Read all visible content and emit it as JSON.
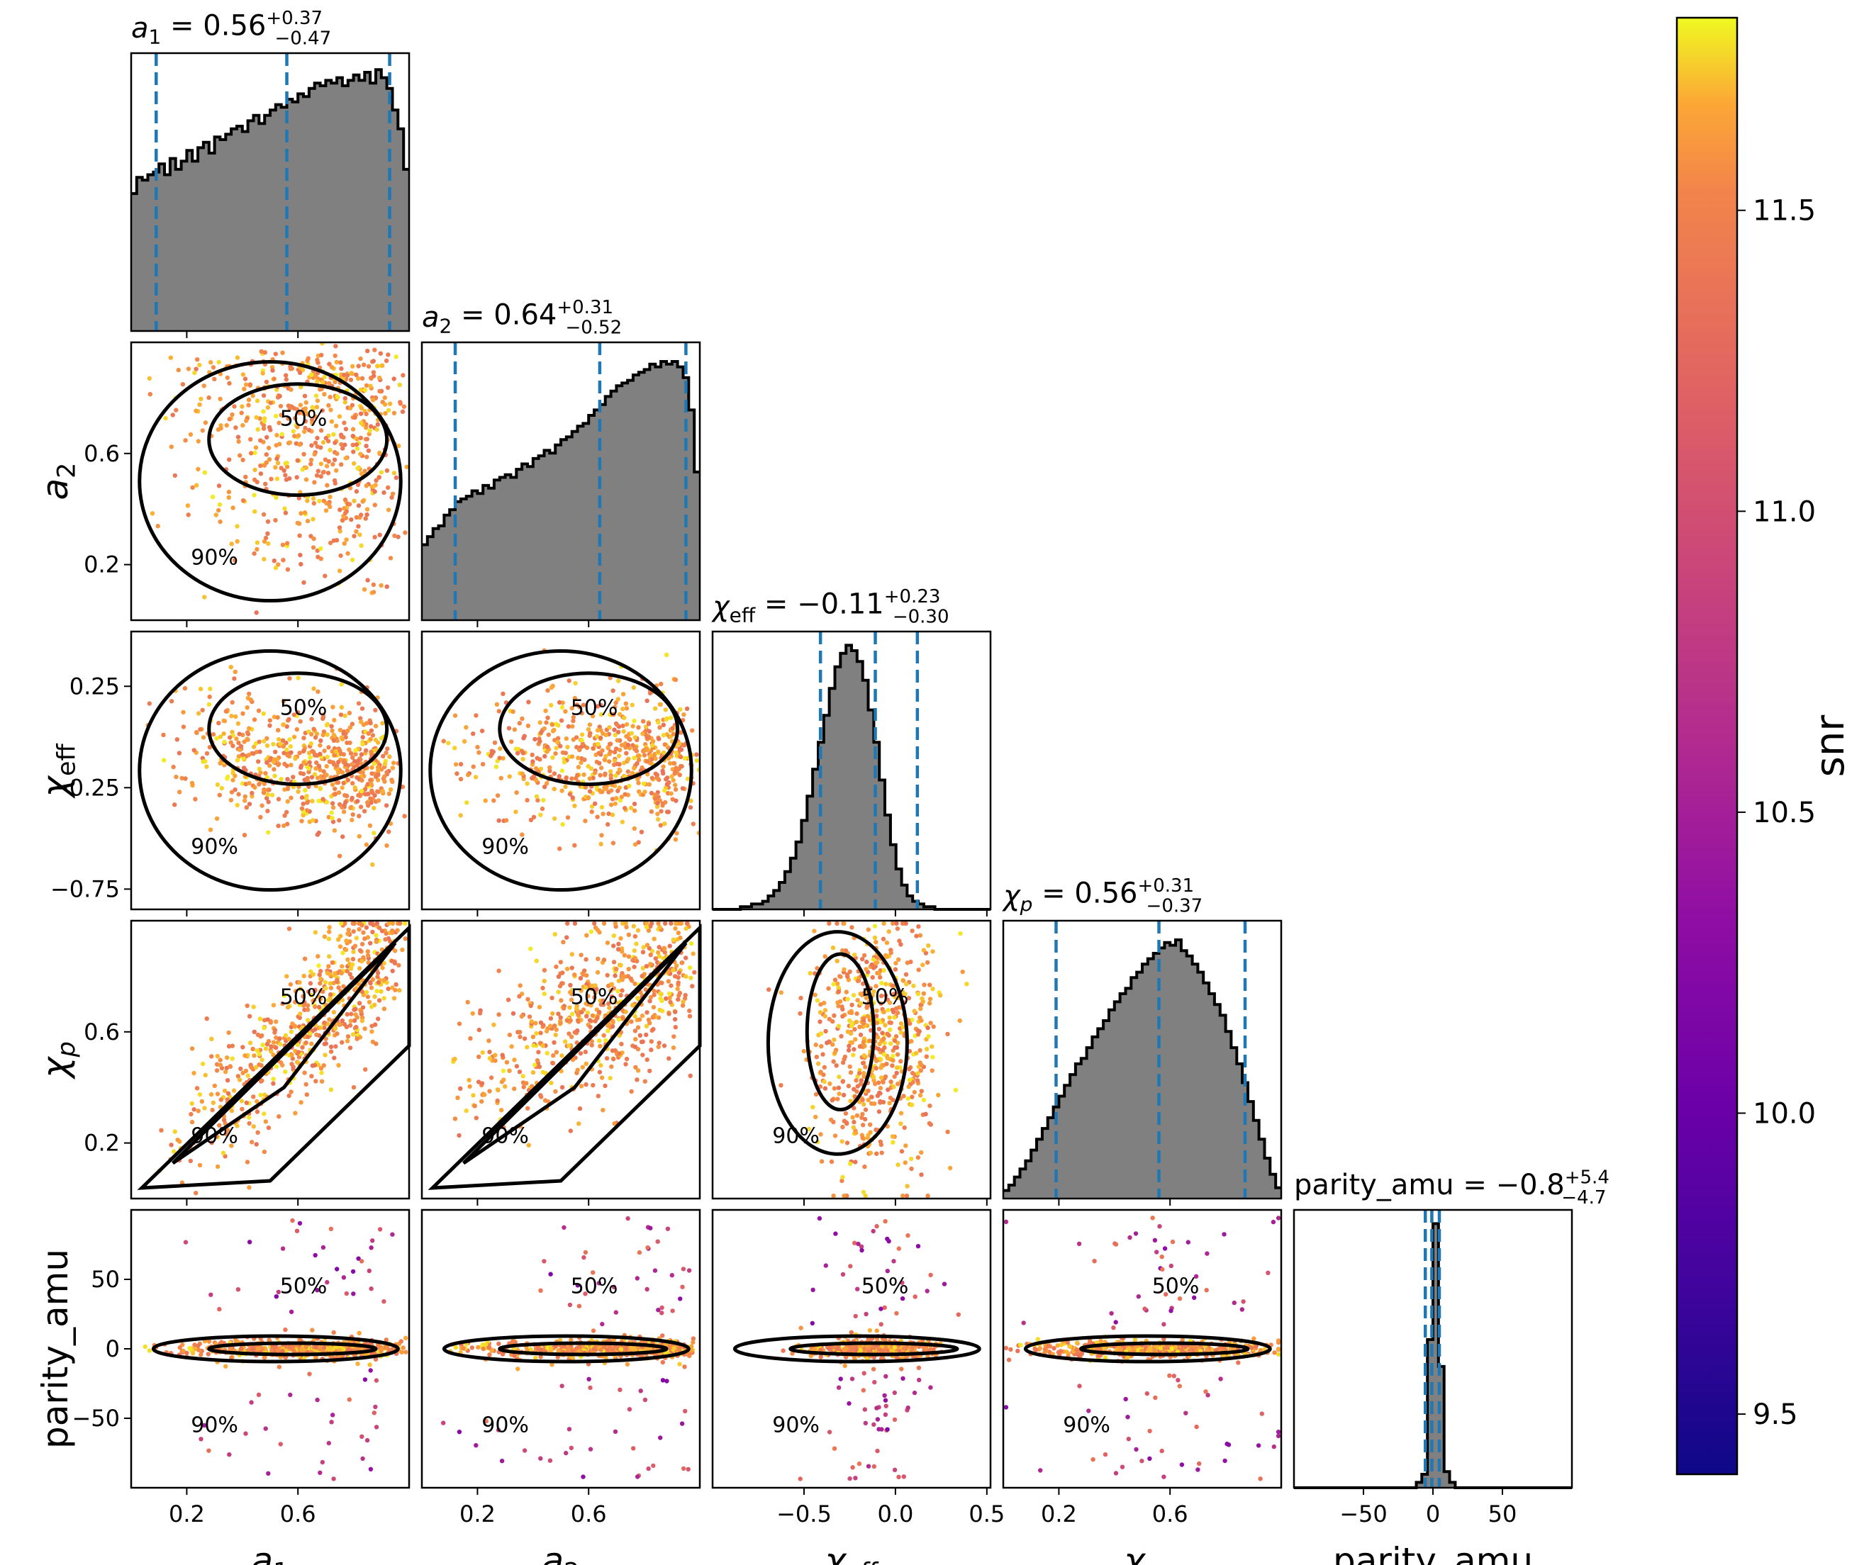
{
  "chart_data": {
    "type": "corner",
    "parameters": [
      {
        "key": "a1",
        "label_main": "a",
        "label_sub": "1",
        "label_sub_style": "number",
        "title_value": "0.56",
        "title_plus": "+0.37",
        "title_minus": "−0.47",
        "range": [
          0.0,
          1.0
        ],
        "ticks": [
          0.2,
          0.6
        ],
        "tick_labels": [
          "0.2",
          "0.6"
        ],
        "median": 0.56,
        "lower": 0.09,
        "upper": 0.93,
        "hist": [
          0.51,
          0.57,
          0.56,
          0.58,
          0.59,
          0.62,
          0.58,
          0.64,
          0.6,
          0.63,
          0.67,
          0.63,
          0.68,
          0.7,
          0.66,
          0.72,
          0.71,
          0.73,
          0.75,
          0.76,
          0.74,
          0.78,
          0.8,
          0.77,
          0.8,
          0.82,
          0.84,
          0.83,
          0.86,
          0.85,
          0.88,
          0.87,
          0.9,
          0.92,
          0.91,
          0.93,
          0.92,
          0.94,
          0.91,
          0.93,
          0.95,
          0.93,
          0.96,
          0.92,
          0.97,
          0.94,
          0.9,
          0.82,
          0.75,
          0.6
        ]
      },
      {
        "key": "a2",
        "label_main": "a",
        "label_sub": "2",
        "label_sub_style": "number",
        "title_value": "0.64",
        "title_plus": "+0.31",
        "title_minus": "−0.52",
        "range": [
          0.0,
          1.0
        ],
        "ticks": [
          0.2,
          0.6
        ],
        "tick_labels": [
          "0.2",
          "0.6"
        ],
        "median": 0.64,
        "lower": 0.12,
        "upper": 0.95,
        "hist": [
          0.28,
          0.31,
          0.34,
          0.35,
          0.39,
          0.41,
          0.44,
          0.45,
          0.46,
          0.48,
          0.47,
          0.5,
          0.49,
          0.52,
          0.53,
          0.54,
          0.53,
          0.56,
          0.58,
          0.57,
          0.6,
          0.61,
          0.63,
          0.62,
          0.65,
          0.67,
          0.68,
          0.7,
          0.72,
          0.73,
          0.76,
          0.78,
          0.8,
          0.83,
          0.85,
          0.87,
          0.88,
          0.89,
          0.91,
          0.92,
          0.93,
          0.95,
          0.94,
          0.96,
          0.95,
          0.96,
          0.94,
          0.9,
          0.78,
          0.55
        ]
      },
      {
        "key": "chi_eff",
        "label_main": "χ",
        "label_sub": "eff",
        "label_sub_style": "text",
        "title_value": "−0.11",
        "title_plus": "+0.23",
        "title_minus": "−0.30",
        "range": [
          -1.0,
          0.52
        ],
        "ticks": [
          -0.5,
          0.0,
          0.5
        ],
        "tick_labels": [
          "−0.5",
          "0.0",
          "0.5"
        ],
        "yticks": [
          -0.75,
          -0.25,
          0.25
        ],
        "ytick_labels": [
          "−0.75",
          "−0.25",
          "0.25"
        ],
        "yrange": [
          -0.85,
          0.52
        ],
        "median": -0.11,
        "lower": -0.41,
        "upper": 0.12,
        "hist": [
          0.0,
          0.0,
          0.0,
          0.0,
          0.0,
          0.01,
          0.01,
          0.02,
          0.02,
          0.03,
          0.05,
          0.07,
          0.1,
          0.14,
          0.19,
          0.25,
          0.33,
          0.42,
          0.52,
          0.62,
          0.72,
          0.82,
          0.9,
          0.95,
          0.98,
          0.96,
          0.92,
          0.85,
          0.74,
          0.62,
          0.48,
          0.35,
          0.24,
          0.15,
          0.09,
          0.05,
          0.03,
          0.02,
          0.01,
          0.01,
          0.0,
          0.0,
          0.0,
          0.0,
          0.0,
          0.0,
          0.0,
          0.0,
          0.0,
          0.0
        ]
      },
      {
        "key": "chi_p",
        "label_main": "χ",
        "label_sub": "p",
        "label_sub_style": "italic",
        "title_value": "0.56",
        "title_plus": "+0.31",
        "title_minus": "−0.37",
        "range": [
          0.0,
          1.0
        ],
        "ticks": [
          0.2,
          0.6
        ],
        "tick_labels": [
          "0.2",
          "0.6"
        ],
        "median": 0.56,
        "lower": 0.19,
        "upper": 0.87,
        "hist": [
          0.03,
          0.05,
          0.08,
          0.11,
          0.14,
          0.18,
          0.22,
          0.26,
          0.3,
          0.34,
          0.38,
          0.42,
          0.46,
          0.5,
          0.52,
          0.56,
          0.6,
          0.63,
          0.66,
          0.7,
          0.73,
          0.76,
          0.78,
          0.82,
          0.84,
          0.87,
          0.89,
          0.91,
          0.93,
          0.95,
          0.94,
          0.96,
          0.92,
          0.9,
          0.87,
          0.84,
          0.8,
          0.76,
          0.72,
          0.68,
          0.62,
          0.56,
          0.5,
          0.43,
          0.36,
          0.29,
          0.22,
          0.15,
          0.09,
          0.04
        ]
      },
      {
        "key": "parity_amu",
        "label_main": "parity_amu",
        "label_sub": "",
        "label_sub_style": "none",
        "title_value": "−0.8",
        "title_plus": "+5.4",
        "title_minus": "−4.7",
        "range": [
          -100,
          100
        ],
        "ticks": [
          -50,
          0,
          50
        ],
        "tick_labels": [
          "−50",
          "0",
          "50"
        ],
        "yticks": [
          -50,
          0,
          50
        ],
        "ytick_labels": [
          "−50",
          "0",
          "50"
        ],
        "median": -0.8,
        "lower": -5.5,
        "upper": 4.6,
        "hist": [
          0,
          0,
          0,
          0,
          0,
          0,
          0,
          0,
          0,
          0,
          0,
          0,
          0,
          0,
          0,
          0,
          0,
          0,
          0,
          0,
          0,
          0,
          0.02,
          0.05,
          0.55,
          0.98,
          0.45,
          0.06,
          0.02,
          0,
          0,
          0,
          0,
          0,
          0,
          0,
          0,
          0,
          0,
          0,
          0,
          0,
          0,
          0,
          0,
          0,
          0,
          0,
          0,
          0
        ]
      }
    ],
    "contour_labels": [
      "50%",
      "90%"
    ],
    "colorbar": {
      "label": "snr",
      "colormap": "plasma",
      "range": [
        9.4,
        11.82
      ],
      "ticks": [
        9.5,
        10.0,
        10.5,
        11.0,
        11.5
      ],
      "tick_labels": [
        "9.5",
        "10.0",
        "10.5",
        "11.0",
        "11.5"
      ]
    },
    "colors": {
      "histogram_fill": "#808080",
      "histogram_edge": "#000000",
      "quantile_line": "#1f77b4",
      "contour": "#000000"
    }
  }
}
